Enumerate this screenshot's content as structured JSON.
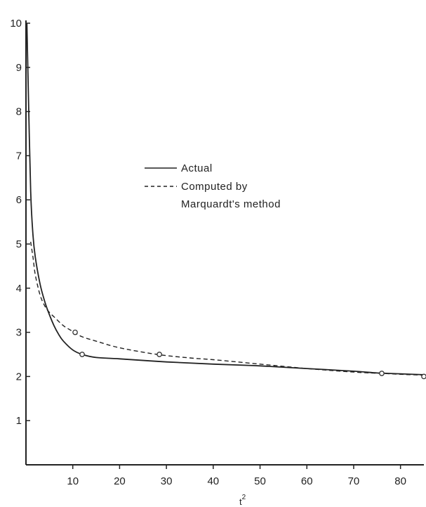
{
  "chart_data": {
    "type": "line",
    "title": "",
    "xlabel": "t",
    "xlabel_superscript": "2",
    "ylabel": "",
    "xlim": [
      0,
      85
    ],
    "ylim": [
      0,
      10
    ],
    "x_ticks": [
      10,
      20,
      30,
      40,
      50,
      60,
      70,
      80
    ],
    "y_ticks": [
      1,
      2,
      3,
      4,
      5,
      6,
      7,
      8,
      9,
      10
    ],
    "grid": false,
    "legend_position": "center",
    "series": [
      {
        "name": "Actual",
        "style": "solid",
        "x": [
          0.2,
          0.5,
          1,
          1.5,
          2,
          3,
          4,
          5,
          6,
          7,
          8,
          10,
          12,
          15,
          20,
          30,
          40,
          50,
          60,
          70,
          75,
          80,
          85
        ],
        "y": [
          10,
          8.5,
          6.2,
          5.2,
          4.7,
          4.1,
          3.7,
          3.4,
          3.15,
          2.95,
          2.8,
          2.6,
          2.5,
          2.43,
          2.4,
          2.33,
          2.28,
          2.24,
          2.18,
          2.12,
          2.08,
          2.06,
          2.04
        ],
        "markers_x": [
          12,
          76
        ],
        "markers_y": [
          2.5,
          2.07
        ]
      },
      {
        "name": "Computed by Marquardt's method",
        "style": "dashed",
        "x": [
          1,
          1.5,
          2,
          3,
          4,
          5,
          6,
          8,
          10,
          12,
          15,
          20,
          28,
          35,
          40,
          50,
          60,
          70,
          76,
          80,
          85
        ],
        "y": [
          5.05,
          4.7,
          4.3,
          3.85,
          3.6,
          3.45,
          3.35,
          3.15,
          3.02,
          2.9,
          2.8,
          2.65,
          2.5,
          2.42,
          2.38,
          2.28,
          2.18,
          2.1,
          2.07,
          2.05,
          2.03
        ],
        "markers_x": [
          10.5,
          28.5,
          85
        ],
        "markers_y": [
          3.0,
          2.5,
          2.0
        ]
      }
    ]
  },
  "legend": {
    "actual": "Actual",
    "computed_line1": "Computed by",
    "computed_line2": "Marquardt's method"
  }
}
